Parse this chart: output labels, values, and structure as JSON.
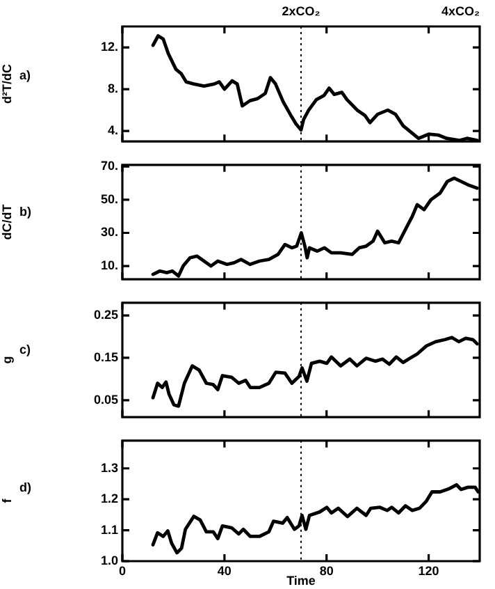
{
  "chart_data": [
    {
      "type": "line",
      "title": "a)",
      "ylabel": "d²T/dC",
      "xlim": [
        0,
        140
      ],
      "xticks": [
        0,
        40,
        80,
        120
      ],
      "ylim": [
        3,
        14
      ],
      "yticks": [
        {
          "value": 4,
          "label": "4."
        },
        {
          "value": 8,
          "label": "8."
        },
        {
          "value": 12,
          "label": "12."
        }
      ],
      "tick_labels": "y",
      "grid": false,
      "legend": false,
      "marker": "none",
      "line_style": "solid",
      "ref_lines": [
        {
          "axis": "x",
          "value": 70,
          "label": "2xCO₂",
          "line_style": "dotted"
        }
      ],
      "annotations": [
        "4xCO₂"
      ],
      "series": [
        {
          "color": "#000000",
          "x": [
            12,
            14,
            16,
            18,
            21,
            23,
            25,
            28,
            32,
            36,
            38,
            40,
            43,
            45,
            47,
            50,
            53,
            56,
            58,
            60,
            63,
            66,
            68,
            70,
            71,
            73,
            76,
            79,
            81,
            83,
            86,
            88,
            92,
            95,
            97,
            100,
            104,
            107,
            110,
            114,
            116,
            120,
            124,
            127,
            132,
            135,
            139
          ],
          "values": [
            12.2,
            13.1,
            12.8,
            11.4,
            9.9,
            9.5,
            8.7,
            8.5,
            8.3,
            8.5,
            8.7,
            8.0,
            8.8,
            8.5,
            6.4,
            6.9,
            7.1,
            7.6,
            9.1,
            8.5,
            6.8,
            5.5,
            4.7,
            4.1,
            5.1,
            6.0,
            7.0,
            7.4,
            8.1,
            7.5,
            7.7,
            7.0,
            6.0,
            5.5,
            4.8,
            5.6,
            6.0,
            5.6,
            4.5,
            3.7,
            3.3,
            3.7,
            3.6,
            3.3,
            3.1,
            3.3,
            3.1
          ]
        }
      ]
    },
    {
      "type": "line",
      "title": "b)",
      "ylabel": "dC/dT",
      "xlim": [
        0,
        140
      ],
      "xticks": [
        0,
        40,
        80,
        120
      ],
      "ylim": [
        2,
        71
      ],
      "yticks": [
        {
          "value": 10,
          "label": "10."
        },
        {
          "value": 30,
          "label": "30."
        },
        {
          "value": 50,
          "label": "50."
        },
        {
          "value": 70,
          "label": "70."
        }
      ],
      "tick_labels": "y",
      "grid": false,
      "legend": false,
      "marker": "none",
      "line_style": "solid",
      "ref_lines": [
        {
          "axis": "x",
          "value": 70,
          "line_style": "dotted"
        }
      ],
      "series": [
        {
          "color": "#000000",
          "x": [
            12,
            14.7,
            17.4,
            19.6,
            22,
            23.8,
            26.5,
            29.2,
            32,
            34.7,
            37.4,
            41,
            43.8,
            46.5,
            50,
            53.7,
            57.4,
            61,
            63.7,
            66.4,
            68.3,
            70.1,
            71.5,
            72.4,
            73.3,
            76.4,
            79.2,
            81.9,
            85.5,
            90,
            92.8,
            95.5,
            98.2,
            100,
            102.8,
            105.5,
            108.2,
            110.9,
            113.6,
            115.5,
            118.2,
            120.9,
            124.5,
            127.3,
            130,
            132.7,
            135.4,
            139
          ],
          "values": [
            5,
            7,
            6,
            7,
            4,
            10,
            15,
            16,
            13,
            10,
            13,
            11,
            12,
            14,
            11,
            13,
            14,
            17,
            23,
            21,
            22,
            30,
            22,
            15,
            21,
            19,
            21,
            18,
            18,
            17,
            21,
            22,
            25,
            31,
            24,
            25,
            24,
            32,
            40,
            47,
            44,
            50,
            54,
            61,
            63,
            61,
            59,
            57
          ]
        }
      ]
    },
    {
      "type": "line",
      "title": "c)",
      "ylabel": "g",
      "xlim": [
        0,
        140
      ],
      "xticks": [
        0,
        40,
        80,
        120
      ],
      "ylim": [
        0.01,
        0.28
      ],
      "yticks": [
        0.05,
        0.15,
        0.25
      ],
      "tick_labels": "y",
      "grid": false,
      "legend": false,
      "marker": "none",
      "line_style": "solid",
      "ref_lines": [
        {
          "axis": "x",
          "value": 70,
          "line_style": "dotted"
        }
      ],
      "series": [
        {
          "color": "#000000",
          "x": [
            12,
            13.8,
            15.6,
            17.1,
            18.3,
            20.2,
            22,
            24.3,
            27.4,
            30.1,
            32.9,
            35.6,
            37.4,
            39.2,
            42.8,
            45.6,
            48.3,
            50.1,
            53.7,
            57.4,
            60.1,
            63.7,
            66.4,
            69.2,
            70.4,
            72.3,
            74.1,
            77.3,
            80.1,
            81.9,
            85.5,
            89.1,
            91.9,
            95.5,
            99.1,
            101.9,
            104.6,
            107.3,
            110,
            112.7,
            115.5,
            119.1,
            122.7,
            126.4,
            129.1,
            131.8,
            134.5,
            137.3,
            139
          ],
          "values": [
            0.056,
            0.09,
            0.08,
            0.093,
            0.064,
            0.039,
            0.036,
            0.09,
            0.131,
            0.121,
            0.09,
            0.087,
            0.075,
            0.108,
            0.104,
            0.09,
            0.097,
            0.08,
            0.08,
            0.09,
            0.116,
            0.114,
            0.09,
            0.106,
            0.126,
            0.095,
            0.137,
            0.142,
            0.137,
            0.152,
            0.131,
            0.147,
            0.131,
            0.149,
            0.142,
            0.147,
            0.135,
            0.152,
            0.139,
            0.149,
            0.159,
            0.178,
            0.188,
            0.193,
            0.198,
            0.188,
            0.196,
            0.193,
            0.183
          ]
        }
      ]
    },
    {
      "type": "line",
      "title": "d)",
      "xlabel": "Time",
      "ylabel": "f",
      "xlim": [
        0,
        140
      ],
      "xticks": [
        0,
        40,
        80,
        120
      ],
      "ylim": [
        1.0,
        1.39
      ],
      "yticks": [
        {
          "value": 1.0,
          "label": "1.0"
        },
        1.1,
        1.2,
        1.3
      ],
      "grid": false,
      "legend": false,
      "marker": "none",
      "line_style": "solid",
      "ref_lines": [
        {
          "axis": "x",
          "value": 70,
          "line_style": "dotted"
        }
      ],
      "series": [
        {
          "color": "#000000",
          "x": [
            12,
            13.8,
            16,
            17.8,
            19.3,
            21.4,
            23.2,
            24.7,
            28,
            30.5,
            32.9,
            35.6,
            37.4,
            39.2,
            42.8,
            45.6,
            47.4,
            50.1,
            53.7,
            57.4,
            59.2,
            62.8,
            64.6,
            67.4,
            69.2,
            70.4,
            71.9,
            73.3,
            77.3,
            80.1,
            81.9,
            84.6,
            88.2,
            91.9,
            95.5,
            97.3,
            100.9,
            103.7,
            105.5,
            108.2,
            110.9,
            113.6,
            116.4,
            119.1,
            121.3,
            124.5,
            128.2,
            130.9,
            132.7,
            135.4,
            138.2,
            139.4
          ],
          "values": [
            1.053,
            1.092,
            1.08,
            1.098,
            1.058,
            1.027,
            1.042,
            1.103,
            1.145,
            1.133,
            1.095,
            1.095,
            1.073,
            1.114,
            1.108,
            1.088,
            1.103,
            1.08,
            1.08,
            1.095,
            1.129,
            1.123,
            1.141,
            1.103,
            1.114,
            1.148,
            1.103,
            1.148,
            1.159,
            1.174,
            1.156,
            1.171,
            1.144,
            1.171,
            1.148,
            1.171,
            1.174,
            1.164,
            1.174,
            1.156,
            1.179,
            1.164,
            1.171,
            1.194,
            1.224,
            1.224,
            1.235,
            1.247,
            1.232,
            1.239,
            1.239,
            1.224
          ]
        }
      ]
    }
  ]
}
